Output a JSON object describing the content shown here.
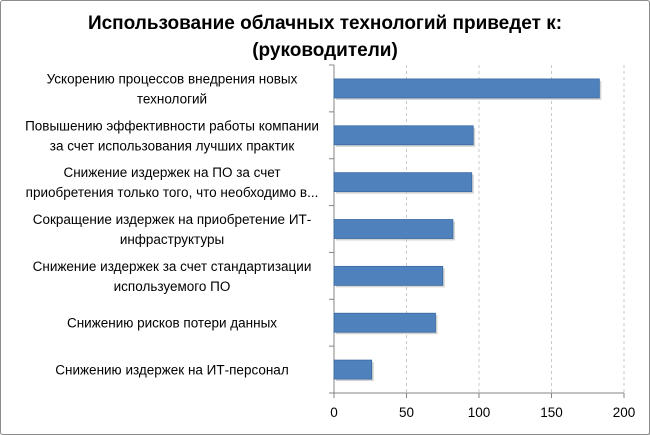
{
  "chart_data": {
    "type": "bar",
    "orientation": "horizontal",
    "title_lines": [
      "Использование облачных технологий приведет к:",
      "(руководители)"
    ],
    "categories": [
      [
        "Ускорению процессов внедрения новых",
        "технологий"
      ],
      [
        "Повышению эффективности работы компании",
        "за счет использования лучших практик"
      ],
      [
        "Снижение издержек на ПО за счет",
        "приобретения только того, что необходимо в..."
      ],
      [
        "Сокращение издержек на приобретение ИТ-",
        "инфраструктуры"
      ],
      [
        "Снижение издержек за счет стандартизации",
        "используемого ПО"
      ],
      [
        "Снижению рисков потери данных"
      ],
      [
        "Снижению издержек на ИТ-персонал"
      ]
    ],
    "values": [
      183,
      96,
      95,
      82,
      75,
      70,
      26
    ],
    "xlim": [
      0,
      200
    ],
    "xticks": [
      "0",
      "50",
      "100",
      "150",
      "200"
    ],
    "grid": true,
    "legend": "none",
    "colors": {
      "bar": "#4f81bd",
      "bar_stroke": "#3a6aa3",
      "grid": "#c8c8c8",
      "axis": "#868686"
    }
  }
}
